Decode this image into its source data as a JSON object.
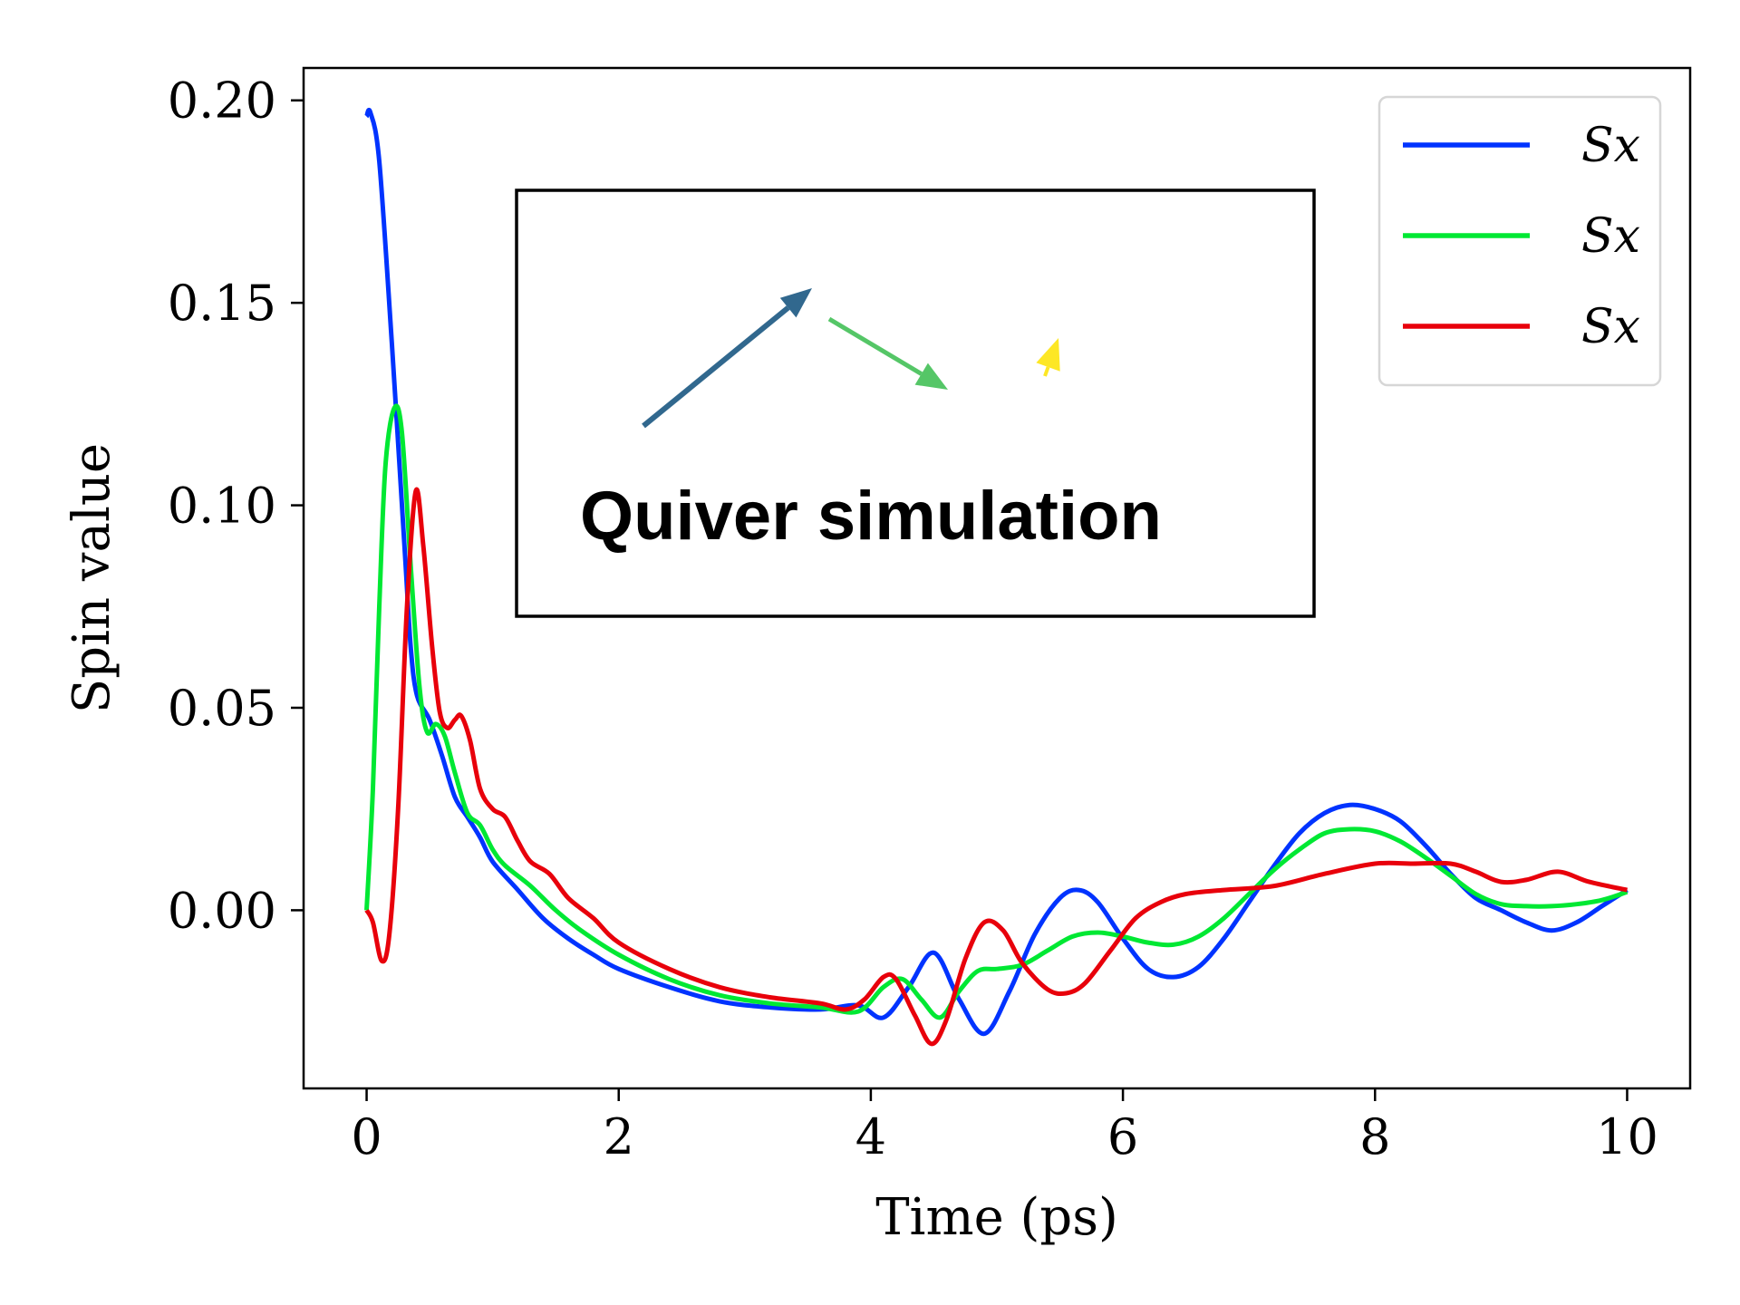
{
  "chart_data": {
    "type": "line",
    "xlabel": "Time (ps)",
    "ylabel": "Spin value",
    "xlim": [
      -0.5,
      10.5
    ],
    "ylim": [
      -0.044,
      0.208
    ],
    "xticks": [
      "0",
      "2",
      "4",
      "6",
      "8",
      "10"
    ],
    "yticks": [
      "0.20",
      "0.15",
      "0.10",
      "0.05",
      "0.00"
    ],
    "legend_position": "top-right",
    "grid": false,
    "series": [
      {
        "name": "Sx",
        "color": "#0033ff",
        "points": [
          [
            0,
            0.196
          ],
          [
            0.03,
            0.197
          ],
          [
            0.1,
            0.185
          ],
          [
            0.2,
            0.14
          ],
          [
            0.3,
            0.09
          ],
          [
            0.35,
            0.065
          ],
          [
            0.4,
            0.053
          ],
          [
            0.5,
            0.047
          ],
          [
            0.6,
            0.038
          ],
          [
            0.7,
            0.028
          ],
          [
            0.8,
            0.023
          ],
          [
            0.9,
            0.018
          ],
          [
            1.0,
            0.012
          ],
          [
            1.2,
            0.005
          ],
          [
            1.4,
            -0.002
          ],
          [
            1.6,
            -0.007
          ],
          [
            1.8,
            -0.011
          ],
          [
            2.0,
            -0.0145
          ],
          [
            2.4,
            -0.019
          ],
          [
            2.8,
            -0.0225
          ],
          [
            3.2,
            -0.024
          ],
          [
            3.6,
            -0.0245
          ],
          [
            3.9,
            -0.0235
          ],
          [
            4.1,
            -0.0265
          ],
          [
            4.3,
            -0.019
          ],
          [
            4.5,
            -0.0105
          ],
          [
            4.7,
            -0.022
          ],
          [
            4.9,
            -0.0305
          ],
          [
            5.1,
            -0.02
          ],
          [
            5.3,
            -0.006
          ],
          [
            5.5,
            0.003
          ],
          [
            5.65,
            0.005
          ],
          [
            5.8,
            0.002
          ],
          [
            6.0,
            -0.007
          ],
          [
            6.2,
            -0.0145
          ],
          [
            6.4,
            -0.0165
          ],
          [
            6.6,
            -0.014
          ],
          [
            6.8,
            -0.007
          ],
          [
            7.0,
            0.002
          ],
          [
            7.2,
            0.011
          ],
          [
            7.4,
            0.019
          ],
          [
            7.6,
            0.024
          ],
          [
            7.8,
            0.026
          ],
          [
            8.0,
            0.025
          ],
          [
            8.2,
            0.022
          ],
          [
            8.4,
            0.016
          ],
          [
            8.6,
            0.009
          ],
          [
            8.8,
            0.003
          ],
          [
            9.0,
            0.0
          ],
          [
            9.2,
            -0.003
          ],
          [
            9.4,
            -0.005
          ],
          [
            9.6,
            -0.003
          ],
          [
            9.8,
            0.001
          ],
          [
            10.0,
            0.005
          ]
        ]
      },
      {
        "name": "Sx",
        "color": "#00e833",
        "points": [
          [
            0,
            0.0
          ],
          [
            0.05,
            0.03
          ],
          [
            0.1,
            0.075
          ],
          [
            0.15,
            0.11
          ],
          [
            0.22,
            0.124
          ],
          [
            0.28,
            0.118
          ],
          [
            0.35,
            0.085
          ],
          [
            0.42,
            0.055
          ],
          [
            0.48,
            0.044
          ],
          [
            0.55,
            0.046
          ],
          [
            0.62,
            0.043
          ],
          [
            0.7,
            0.034
          ],
          [
            0.8,
            0.024
          ],
          [
            0.9,
            0.021
          ],
          [
            1.0,
            0.015
          ],
          [
            1.1,
            0.011
          ],
          [
            1.3,
            0.006
          ],
          [
            1.5,
            0.0
          ],
          [
            1.7,
            -0.005
          ],
          [
            2.0,
            -0.011
          ],
          [
            2.4,
            -0.017
          ],
          [
            2.8,
            -0.021
          ],
          [
            3.2,
            -0.023
          ],
          [
            3.6,
            -0.024
          ],
          [
            3.9,
            -0.025
          ],
          [
            4.1,
            -0.019
          ],
          [
            4.25,
            -0.017
          ],
          [
            4.4,
            -0.022
          ],
          [
            4.55,
            -0.0265
          ],
          [
            4.7,
            -0.02
          ],
          [
            4.85,
            -0.015
          ],
          [
            5.0,
            -0.0145
          ],
          [
            5.2,
            -0.0135
          ],
          [
            5.4,
            -0.01
          ],
          [
            5.6,
            -0.0065
          ],
          [
            5.8,
            -0.0055
          ],
          [
            6.0,
            -0.0065
          ],
          [
            6.2,
            -0.008
          ],
          [
            6.4,
            -0.0085
          ],
          [
            6.6,
            -0.0065
          ],
          [
            6.8,
            -0.002
          ],
          [
            7.0,
            0.004
          ],
          [
            7.2,
            0.01
          ],
          [
            7.4,
            0.015
          ],
          [
            7.6,
            0.019
          ],
          [
            7.8,
            0.02
          ],
          [
            8.0,
            0.0195
          ],
          [
            8.2,
            0.017
          ],
          [
            8.4,
            0.013
          ],
          [
            8.6,
            0.0085
          ],
          [
            8.8,
            0.004
          ],
          [
            9.0,
            0.0015
          ],
          [
            9.2,
            0.001
          ],
          [
            9.4,
            0.001
          ],
          [
            9.6,
            0.0015
          ],
          [
            9.8,
            0.0025
          ],
          [
            10.0,
            0.0045
          ]
        ]
      },
      {
        "name": "Sx",
        "color": "#e8000b",
        "points": [
          [
            0,
            0.0
          ],
          [
            0.05,
            -0.003
          ],
          [
            0.12,
            -0.0125
          ],
          [
            0.18,
            -0.006
          ],
          [
            0.25,
            0.025
          ],
          [
            0.32,
            0.075
          ],
          [
            0.39,
            0.1035
          ],
          [
            0.45,
            0.09
          ],
          [
            0.52,
            0.065
          ],
          [
            0.58,
            0.049
          ],
          [
            0.64,
            0.045
          ],
          [
            0.7,
            0.047
          ],
          [
            0.75,
            0.048
          ],
          [
            0.82,
            0.042
          ],
          [
            0.9,
            0.03
          ],
          [
            1.0,
            0.025
          ],
          [
            1.1,
            0.023
          ],
          [
            1.2,
            0.017
          ],
          [
            1.3,
            0.012
          ],
          [
            1.45,
            0.009
          ],
          [
            1.6,
            0.003
          ],
          [
            1.8,
            -0.002
          ],
          [
            2.0,
            -0.008
          ],
          [
            2.4,
            -0.0145
          ],
          [
            2.8,
            -0.019
          ],
          [
            3.2,
            -0.0215
          ],
          [
            3.6,
            -0.023
          ],
          [
            3.8,
            -0.0245
          ],
          [
            3.95,
            -0.022
          ],
          [
            4.1,
            -0.0165
          ],
          [
            4.2,
            -0.017
          ],
          [
            4.35,
            -0.026
          ],
          [
            4.48,
            -0.033
          ],
          [
            4.6,
            -0.027
          ],
          [
            4.75,
            -0.012
          ],
          [
            4.9,
            -0.003
          ],
          [
            5.05,
            -0.005
          ],
          [
            5.2,
            -0.013
          ],
          [
            5.4,
            -0.0195
          ],
          [
            5.55,
            -0.0205
          ],
          [
            5.7,
            -0.018
          ],
          [
            5.9,
            -0.01
          ],
          [
            6.1,
            -0.002
          ],
          [
            6.3,
            0.002
          ],
          [
            6.5,
            0.004
          ],
          [
            6.8,
            0.005
          ],
          [
            7.2,
            0.006
          ],
          [
            7.6,
            0.009
          ],
          [
            8.0,
            0.0115
          ],
          [
            8.3,
            0.0115
          ],
          [
            8.6,
            0.0115
          ],
          [
            8.8,
            0.0095
          ],
          [
            9.0,
            0.007
          ],
          [
            9.2,
            0.0075
          ],
          [
            9.45,
            0.0095
          ],
          [
            9.7,
            0.007
          ],
          [
            10.0,
            0.005
          ]
        ]
      }
    ],
    "inset": {
      "title": "Quiver simulation",
      "arrow_colors": [
        "#31688e",
        "#55c667",
        "#fde725"
      ]
    }
  }
}
